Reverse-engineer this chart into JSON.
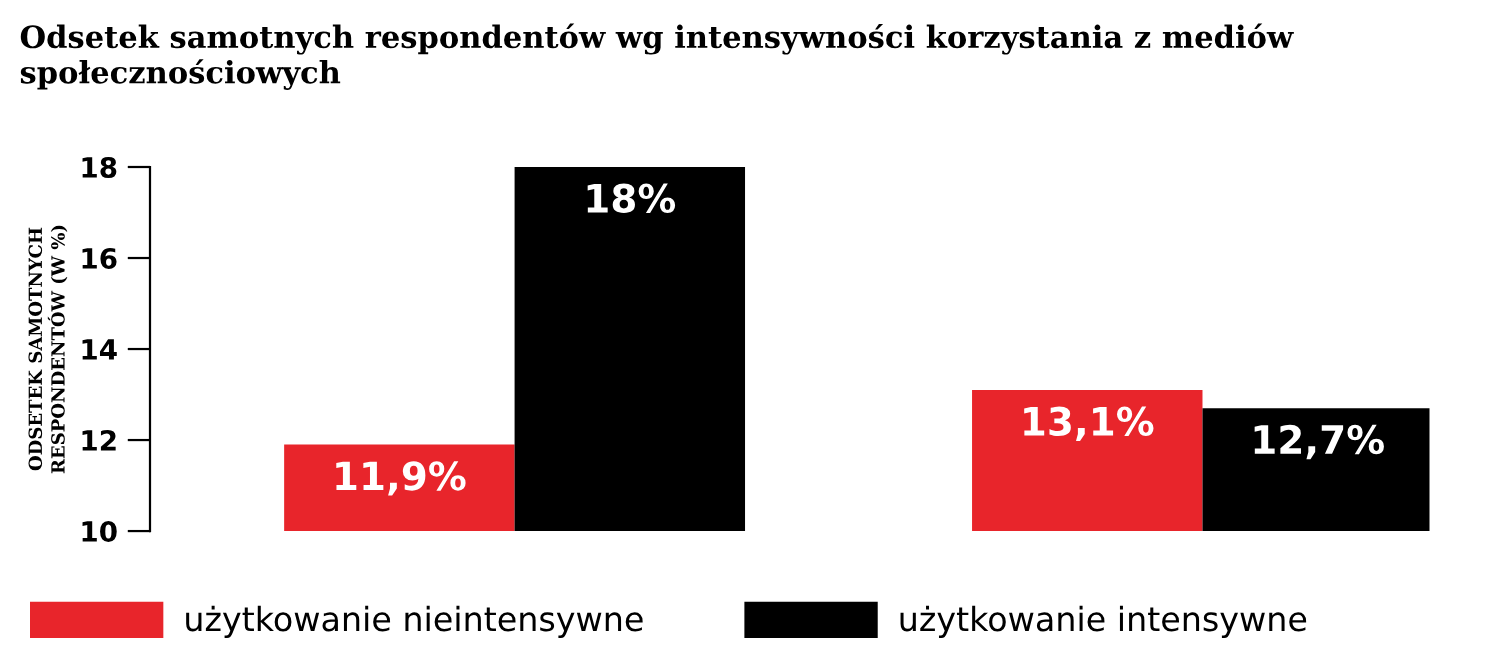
{
  "chart_data": {
    "type": "bar",
    "title": "Odsetek samotnych respondentów wg intensywności korzystania z mediów społecznościowych",
    "ylabel": "ODSETEK SAMOTNYCH\nRESPONDENTÓW (W %)",
    "categories": [
      null,
      null
    ],
    "series": [
      {
        "name": "użytkowanie nieintensywne",
        "color": "#e8252b",
        "values": [
          11.9,
          13.1
        ],
        "value_labels": [
          "11,9%",
          "13,1%"
        ]
      },
      {
        "name": "użytkowanie intensywne",
        "color": "#000000",
        "values": [
          18,
          12.7
        ],
        "value_labels": [
          "18%",
          "12,7%"
        ]
      }
    ],
    "ylim": [
      10,
      18
    ],
    "yticks": [
      10,
      12,
      14,
      16,
      18
    ],
    "grid": false,
    "legend": "bottom"
  }
}
